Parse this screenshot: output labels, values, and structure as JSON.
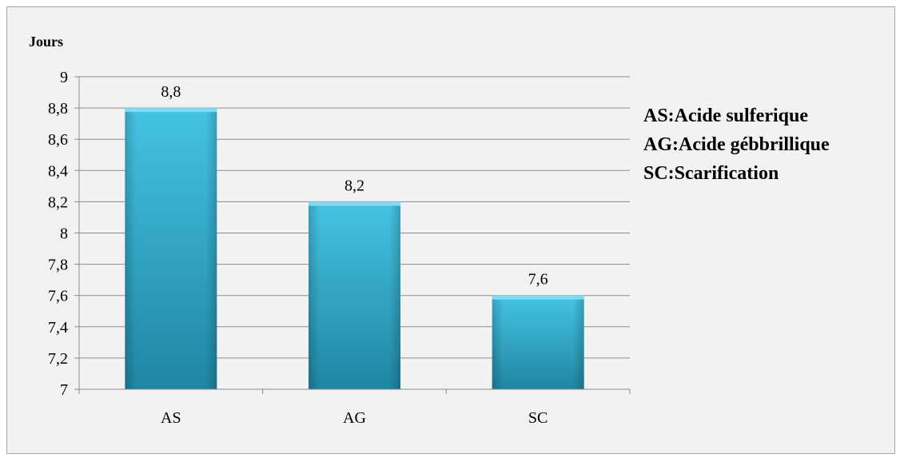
{
  "chart_data": {
    "type": "bar",
    "ylabel": "Jours",
    "categories": [
      "AS",
      "AG",
      "SC"
    ],
    "values": [
      8.8,
      8.2,
      7.6
    ],
    "data_labels": [
      "8,8",
      "8,2",
      "7,6"
    ],
    "ylim": [
      7,
      9
    ],
    "yticks": [
      7,
      7.2,
      7.4,
      7.6,
      7.8,
      8,
      8.2,
      8.4,
      8.6,
      8.8,
      9
    ],
    "ytick_labels": [
      "7",
      "7,2",
      "7,4",
      "7,6",
      "7,8",
      "8",
      "8,2",
      "8,4",
      "8,6",
      "8,8",
      "9"
    ],
    "grid": true,
    "bar_color": "#2fa7c8",
    "annotations": [
      "AS:Acide sulferique",
      "AG:Acide gébbrillique",
      "SC:Scarification"
    ]
  }
}
